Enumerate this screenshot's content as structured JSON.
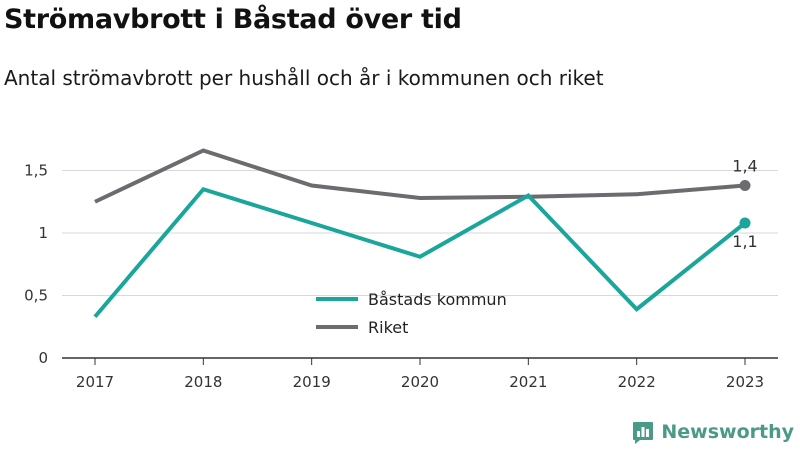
{
  "title": "Strömavbrott i Båstad över tid",
  "subtitle": "Antal strömavbrott per hushåll och år i kommunen och riket",
  "brand": {
    "name": "Newsworthy",
    "icon": "newsworthy-logo-icon",
    "color": "#4a9a88"
  },
  "chart_data": {
    "type": "line",
    "categories": [
      "2017",
      "2018",
      "2019",
      "2020",
      "2021",
      "2022",
      "2023"
    ],
    "series": [
      {
        "name": "Båstads kommun",
        "color": "#1aa69a",
        "values": [
          0.33,
          1.35,
          1.08,
          0.81,
          1.3,
          0.39,
          1.08
        ],
        "end_label": "1,1"
      },
      {
        "name": "Riket",
        "color": "#6d6b70",
        "values": [
          1.25,
          1.66,
          1.38,
          1.28,
          1.29,
          1.31,
          1.38
        ],
        "end_label": "1,4"
      }
    ],
    "yticks": [
      0,
      0.5,
      1,
      1.5
    ],
    "ytick_labels": [
      "0",
      "0,5",
      "1",
      "1,5"
    ],
    "ylim": [
      0,
      1.75
    ],
    "grid": true,
    "legend_position": "bottom-center"
  }
}
